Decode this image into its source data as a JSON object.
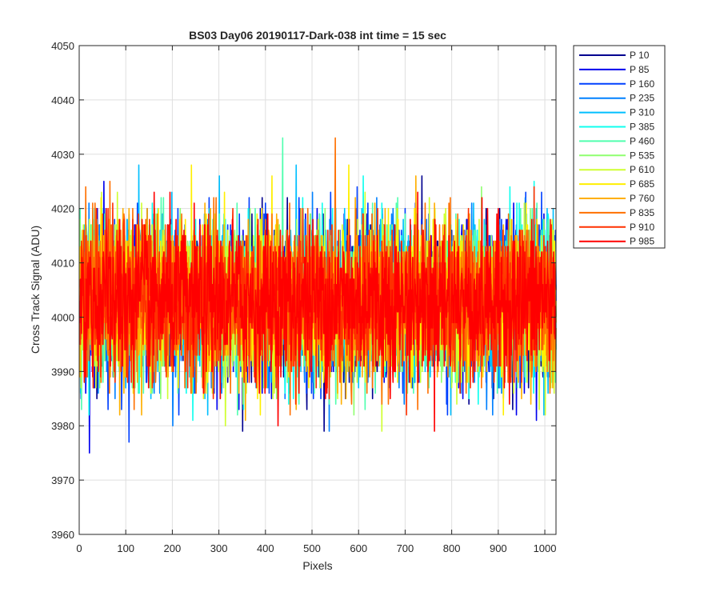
{
  "chart_data": {
    "type": "line",
    "title": "BS03 Day06 20190117-Dark-038 int time = 15 sec",
    "xlabel": "Pixels",
    "ylabel": "Cross Track Signal (ADU)",
    "xlim": [
      0,
      1024
    ],
    "ylim": [
      3960,
      4050
    ],
    "x_ticks": [
      0,
      100,
      200,
      300,
      400,
      500,
      600,
      700,
      800,
      900,
      1000
    ],
    "y_ticks": [
      3960,
      3970,
      3980,
      3990,
      4000,
      4010,
      4020,
      4030,
      4040,
      4050
    ],
    "grid": true,
    "legend_position": "outside-top-right",
    "x": "pixel index 1..1024",
    "noise_model": {
      "mean": 4003,
      "std": 7,
      "min_observed": 3969,
      "max_observed": 4042
    },
    "series": [
      {
        "name": "P 10",
        "color": "#00008F"
      },
      {
        "name": "P 85",
        "color": "#0000EE"
      },
      {
        "name": "P 160",
        "color": "#0040FF"
      },
      {
        "name": "P 235",
        "color": "#0080FF"
      },
      {
        "name": "P 310",
        "color": "#00BFFF"
      },
      {
        "name": "P 385",
        "color": "#10FFEF"
      },
      {
        "name": "P 460",
        "color": "#50FFAF"
      },
      {
        "name": "P 535",
        "color": "#8FFF70"
      },
      {
        "name": "P 610",
        "color": "#CFFF30"
      },
      {
        "name": "P 685",
        "color": "#FFEF00"
      },
      {
        "name": "P 760",
        "color": "#FFAF00"
      },
      {
        "name": "P 835",
        "color": "#FF7000"
      },
      {
        "name": "P 910",
        "color": "#FF3000"
      },
      {
        "name": "P 985",
        "color": "#FF0000"
      }
    ]
  }
}
